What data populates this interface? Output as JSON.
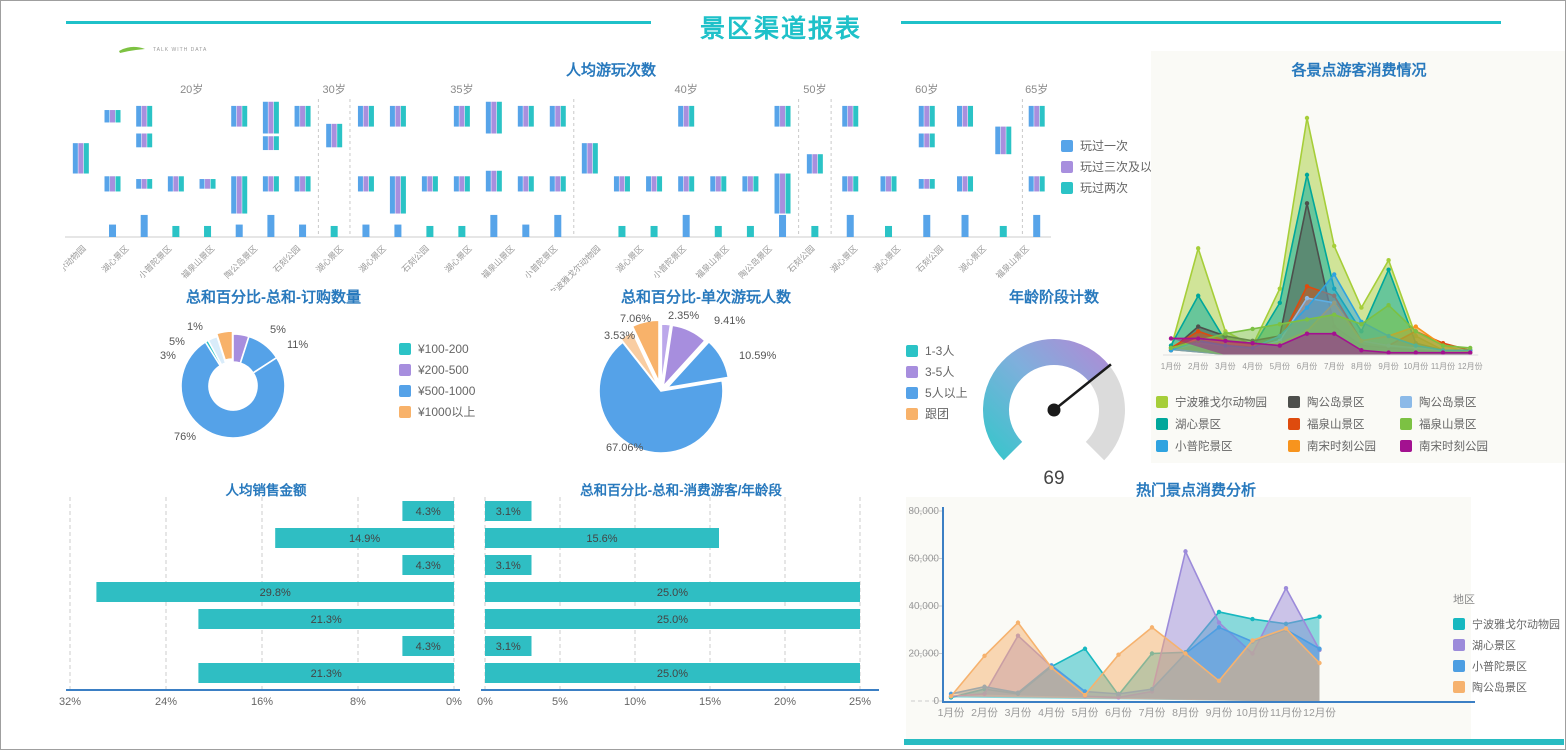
{
  "page": {
    "title": "景区渠道报表",
    "logo_text": "TALK WITH DATA"
  },
  "chart_data": [
    {
      "id": "play-count",
      "type": "bar",
      "title": "人均游玩次数",
      "legend": [
        {
          "label": "玩过一次",
          "color": "#57a4e9"
        },
        {
          "label": "玩过三次及以上",
          "color": "#a88fde"
        },
        {
          "label": "玩过两次",
          "color": "#2bc3c6"
        }
      ],
      "age_groups": [
        {
          "label": "20岁",
          "count": 8
        },
        {
          "label": "30岁",
          "count": 1
        },
        {
          "label": "35岁",
          "count": 7
        },
        {
          "label": "40岁",
          "count": 7
        },
        {
          "label": "50岁",
          "count": 1
        },
        {
          "label": "60岁",
          "count": 5
        },
        {
          "label": "65岁",
          "count": 1
        }
      ],
      "axis_labels": [
        "宁波雅戈尔动物园",
        "湖心景区",
        "小普陀景区",
        "福泉山景区",
        "陶公岛景区",
        "石刻公园",
        "湖心景区",
        "湖心景区",
        "石刻公园",
        "湖心景区",
        "福泉山景区",
        "小普陀景区",
        "宁波雅戈尔动物园",
        "湖心景区",
        "小普陀景区",
        "福泉山景区",
        "陶公岛景区",
        "石刻公园",
        "湖心景区",
        "湖心景区",
        "石刻公园",
        "湖心景区",
        "福泉山景区"
      ],
      "categories": [
        {
          "c": [
            [
              32,
              22
            ]
          ],
          "b": null
        },
        {
          "c": [
            [
              8,
              9
            ],
            [
              56,
              11
            ]
          ],
          "b": [
            "blue",
            9
          ]
        },
        {
          "c": [
            [
              5,
              15
            ],
            [
              25,
              10
            ],
            [
              58,
              7
            ]
          ],
          "b": [
            "blue",
            16
          ]
        },
        {
          "c": [
            [
              56,
              11
            ]
          ],
          "b": [
            "teal",
            8
          ]
        },
        {
          "c": [
            [
              58,
              7
            ]
          ],
          "b": [
            "teal",
            8
          ]
        },
        {
          "c": [
            [
              5,
              15
            ],
            [
              56,
              27
            ]
          ],
          "b": [
            "blue",
            9
          ]
        },
        {
          "c": [
            [
              2,
              23
            ],
            [
              27,
              10
            ],
            [
              56,
              11
            ]
          ],
          "b": [
            "blue",
            16
          ]
        },
        {
          "c": [
            [
              5,
              15
            ],
            [
              56,
              11
            ]
          ],
          "b": [
            "blue",
            9
          ]
        },
        {
          "c": [
            [
              18,
              17
            ]
          ],
          "b": [
            "teal",
            8
          ]
        },
        {
          "c": [
            [
              5,
              15
            ],
            [
              56,
              11
            ]
          ],
          "b": [
            "blue",
            9
          ]
        },
        {
          "c": [
            [
              5,
              15
            ],
            [
              56,
              27
            ]
          ],
          "b": [
            "blue",
            9
          ]
        },
        {
          "c": [
            [
              56,
              11
            ]
          ],
          "b": [
            "teal",
            8
          ]
        },
        {
          "c": [
            [
              5,
              15
            ],
            [
              56,
              11
            ]
          ],
          "b": [
            "teal",
            8
          ]
        },
        {
          "c": [
            [
              2,
              23
            ],
            [
              52,
              15
            ]
          ],
          "b": [
            "blue",
            16
          ]
        },
        {
          "c": [
            [
              5,
              15
            ],
            [
              56,
              11
            ]
          ],
          "b": [
            "blue",
            9
          ]
        },
        {
          "c": [
            [
              5,
              15
            ],
            [
              56,
              11
            ]
          ],
          "b": [
            "blue",
            16
          ]
        },
        {
          "c": [
            [
              32,
              22
            ]
          ],
          "b": null
        },
        {
          "c": [
            [
              56,
              11
            ]
          ],
          "b": [
            "teal",
            8
          ]
        },
        {
          "c": [
            [
              56,
              11
            ]
          ],
          "b": [
            "teal",
            8
          ]
        },
        {
          "c": [
            [
              5,
              15
            ],
            [
              56,
              11
            ]
          ],
          "b": [
            "blue",
            16
          ]
        },
        {
          "c": [
            [
              56,
              11
            ]
          ],
          "b": [
            "teal",
            8
          ]
        },
        {
          "c": [
            [
              56,
              11
            ]
          ],
          "b": [
            "teal",
            8
          ]
        },
        {
          "c": [
            [
              5,
              15
            ],
            [
              54,
              29
            ]
          ],
          "b": [
            "blue",
            16
          ]
        },
        {
          "c": [
            [
              40,
              14
            ]
          ],
          "b": [
            "teal",
            8
          ]
        },
        {
          "c": [
            [
              5,
              15
            ],
            [
              56,
              11
            ]
          ],
          "b": [
            "blue",
            16
          ]
        },
        {
          "c": [
            [
              56,
              11
            ]
          ],
          "b": [
            "teal",
            8
          ]
        },
        {
          "c": [
            [
              5,
              15
            ],
            [
              25,
              10
            ],
            [
              58,
              7
            ]
          ],
          "b": [
            "blue",
            16
          ]
        },
        {
          "c": [
            [
              5,
              15
            ],
            [
              56,
              11
            ]
          ],
          "b": [
            "blue",
            16
          ]
        },
        {
          "c": [
            [
              20,
              20
            ]
          ],
          "b": [
            "teal",
            8
          ]
        },
        {
          "c": [
            [
              5,
              15
            ],
            [
              56,
              11
            ]
          ],
          "b": [
            "blue",
            16
          ]
        }
      ]
    },
    {
      "id": "scenic-consume",
      "type": "area",
      "title": "各景点游客消费情况",
      "months": [
        "1月份",
        "2月份",
        "3月份",
        "4月份",
        "5月份",
        "6月份",
        "7月份",
        "8月份",
        "9月份",
        "10月份",
        "11月份",
        "12月份"
      ],
      "y_axis": "unlabeled (relative scale 0-100)",
      "series": [
        {
          "name": "宁波雅戈尔动物园",
          "color": "#a6ce39",
          "values": [
            3,
            45,
            10,
            4,
            28,
            100,
            46,
            20,
            40,
            8,
            2,
            2
          ]
        },
        {
          "name": "湖心景区",
          "color": "#00a79b",
          "values": [
            4,
            25,
            6,
            3,
            22,
            76,
            28,
            10,
            36,
            5,
            2,
            2
          ]
        },
        {
          "name": "陶公岛景区",
          "color": "#4d4f4c",
          "values": [
            2,
            12,
            8,
            6,
            8,
            64,
            12,
            4,
            3,
            2,
            1,
            1
          ]
        },
        {
          "name": "福泉山景区",
          "color": "#de4b0e",
          "values": [
            3,
            10,
            6,
            4,
            6,
            29,
            25,
            6,
            4,
            10,
            5,
            2
          ]
        },
        {
          "name": "陶公岛景区",
          "color": "#8cbae8",
          "values": [
            2,
            5,
            4,
            3,
            6,
            24,
            22,
            6,
            4,
            3,
            2,
            1
          ]
        },
        {
          "name": "南宋时刻公园",
          "color": "#f7941e",
          "values": [
            2,
            7,
            5,
            4,
            5,
            10,
            22,
            6,
            8,
            12,
            4,
            1
          ]
        },
        {
          "name": "小普陀景区",
          "color": "#2fa3e0",
          "values": [
            2,
            6,
            4,
            3,
            8,
            20,
            34,
            14,
            8,
            4,
            2,
            2
          ]
        },
        {
          "name": "福泉山景区",
          "color": "#7cc143",
          "values": [
            3,
            6,
            9,
            11,
            13,
            15,
            17,
            13,
            21,
            10,
            4,
            3
          ]
        },
        {
          "name": "南宋时刻公园",
          "color": "#a31190",
          "values": [
            7,
            7,
            6,
            5,
            4,
            9,
            9,
            2,
            1,
            1,
            1,
            1
          ]
        }
      ],
      "legend": [
        {
          "label": "宁波雅戈尔动物园",
          "color": "#a6ce39"
        },
        {
          "label": "陶公岛景区",
          "color": "#4d4f4c"
        },
        {
          "label": "陶公岛景区",
          "color": "#8cbae8"
        },
        {
          "label": "湖心景区",
          "color": "#00a79b"
        },
        {
          "label": "福泉山景区",
          "color": "#de4b0e"
        },
        {
          "label": "福泉山景区",
          "color": "#7cc143"
        },
        {
          "label": "小普陀景区",
          "color": "#2fa3e0"
        },
        {
          "label": "南宋时刻公园",
          "color": "#f7941e"
        },
        {
          "label": "南宋时刻公园",
          "color": "#a31190"
        }
      ]
    },
    {
      "id": "order-qty",
      "type": "pie",
      "donut": true,
      "title": "总和百分比-总和-订购数量",
      "slices": [
        {
          "label": "5%",
          "value": 5,
          "color": "#a78ede"
        },
        {
          "label": "11%",
          "value": 11,
          "color": "#55a2e8"
        },
        {
          "label": "76%",
          "value": 76,
          "color": "#55a2e8"
        },
        {
          "label": "1%",
          "value": 1,
          "color": "#2bc3c6"
        },
        {
          "label": "3%",
          "value": 3,
          "color": "#d9ecfa"
        },
        {
          "label": "5%",
          "value": 5,
          "color": "#f8b26a"
        }
      ],
      "legend": [
        {
          "label": "¥100-200",
          "color": "#2bc3c6"
        },
        {
          "label": "¥200-500",
          "color": "#a78ede"
        },
        {
          "label": "¥500-1000",
          "color": "#55a2e8"
        },
        {
          "label": "¥1000以上",
          "color": "#f8b26a"
        }
      ]
    },
    {
      "id": "single-play",
      "type": "pie",
      "donut": false,
      "title": "总和百分比-单次游玩人数",
      "slices": [
        {
          "label": "2.35%",
          "value": 2.35,
          "color": "#bca8ea"
        },
        {
          "label": "9.41%",
          "value": 9.41,
          "color": "#a78ede"
        },
        {
          "label": "10.59%",
          "value": 10.59,
          "color": "#55a2e8"
        },
        {
          "label": "67.06%",
          "value": 67.06,
          "color": "#55a2e8"
        },
        {
          "label": "3.53%",
          "value": 3.53,
          "color": "#f9cda2"
        },
        {
          "label": "7.06%",
          "value": 7.06,
          "color": "#f8b26a"
        }
      ],
      "legend": [
        {
          "label": "1-3人",
          "color": "#2bc3c6"
        },
        {
          "label": "3-5人",
          "color": "#a78ede"
        },
        {
          "label": "5人以上",
          "color": "#55a2e8"
        },
        {
          "label": "跟团",
          "color": "#f8b26a"
        }
      ]
    },
    {
      "id": "age-gauge",
      "type": "gauge",
      "title": "年龄阶段计数",
      "value": 69,
      "min": 0,
      "max": 100,
      "value_label": "69",
      "colors": {
        "start": "#3fc3cd",
        "mid": "#7fafdc",
        "end": "#a98fd6",
        "rest": "#dbdbdb",
        "needle": "#1a1a1a"
      }
    },
    {
      "id": "avg-sales",
      "type": "hbar",
      "direction": "left",
      "title": "人均销售金额",
      "values": [
        4.3,
        14.9,
        4.3,
        29.8,
        21.3,
        4.3,
        21.3
      ],
      "labels": [
        "4.3%",
        "14.9%",
        "4.3%",
        "29.8%",
        "21.3%",
        "4.3%",
        "21.3%"
      ],
      "ticks": [
        "32%",
        "24%",
        "16%",
        "8%",
        "0%"
      ],
      "tick_values": [
        32,
        24,
        16,
        8,
        0
      ],
      "max": 32.5,
      "bar_color": "#2fbec3"
    },
    {
      "id": "consume-age",
      "type": "hbar",
      "direction": "right",
      "title": "总和百分比-总和-消费游客/年龄段",
      "values": [
        3.1,
        15.6,
        3.1,
        25.0,
        25.0,
        3.1,
        25.0
      ],
      "labels": [
        "3.1%",
        "15.6%",
        "3.1%",
        "25.0%",
        "25.0%",
        "3.1%",
        "25.0%"
      ],
      "ticks": [
        "0%",
        "5%",
        "10%",
        "15%",
        "20%",
        "25%"
      ],
      "tick_values": [
        0,
        5,
        10,
        15,
        20,
        25
      ],
      "max": 26,
      "bar_color": "#2fbec3"
    },
    {
      "id": "hot-consume",
      "type": "area",
      "title": "热门景点消费分析",
      "legend_title": "地区",
      "months": [
        "1月份",
        "2月份",
        "3月份",
        "4月份",
        "5月份",
        "6月份",
        "7月份",
        "8月份",
        "9月份",
        "10月份",
        "11月份",
        "12月份"
      ],
      "y_ticks": [
        "0",
        "20,000",
        "40,000",
        "60,000",
        "80,000"
      ],
      "y_max": 80000,
      "series": [
        {
          "name": "宁波雅戈尔动物园",
          "color": "#17b8c0",
          "values": [
            1500,
            5000,
            3000,
            14500,
            22000,
            2500,
            20000,
            20500,
            37500,
            34500,
            32500,
            35500
          ]
        },
        {
          "name": "湖心景区",
          "color": "#9c8bda",
          "values": [
            2000,
            3000,
            27500,
            14500,
            2000,
            1500,
            4000,
            63000,
            33000,
            20000,
            47500,
            21500
          ]
        },
        {
          "name": "小普陀景区",
          "color": "#4d9ee2",
          "values": [
            3000,
            6000,
            3500,
            15000,
            4000,
            3000,
            5000,
            20000,
            31000,
            25000,
            30000,
            22000
          ]
        },
        {
          "name": "陶公岛景区",
          "color": "#f6b26e",
          "values": [
            2000,
            19000,
            33000,
            14000,
            2500,
            19500,
            31000,
            20000,
            8500,
            25500,
            30500,
            16000
          ]
        }
      ],
      "legend": [
        {
          "label": "宁波雅戈尔动物园",
          "color": "#17b8c0"
        },
        {
          "label": "湖心景区",
          "color": "#9c8bda"
        },
        {
          "label": "小普陀景区",
          "color": "#4d9ee2"
        },
        {
          "label": "陶公岛景区",
          "color": "#f6b26e"
        }
      ]
    }
  ]
}
